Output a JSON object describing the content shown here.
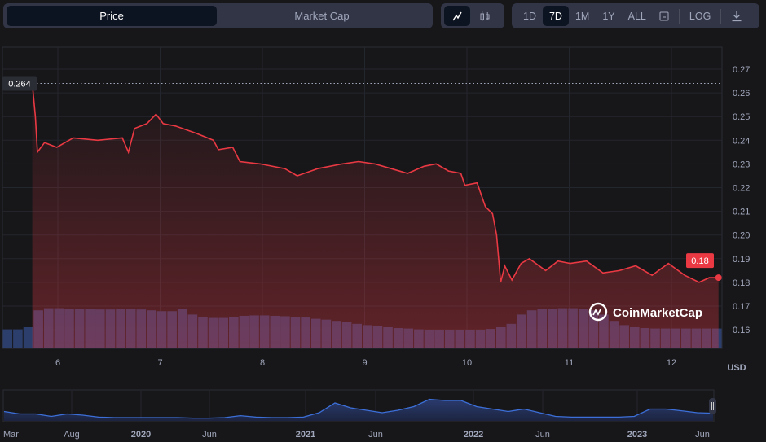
{
  "toggle": {
    "price": "Price",
    "market_cap": "Market Cap"
  },
  "chart_type": {
    "line": "line-chart-icon",
    "candle": "candlestick-icon"
  },
  "timeframes": [
    "1D",
    "7D",
    "1M",
    "1Y",
    "ALL"
  ],
  "active_timeframe": "7D",
  "log_label": "LOG",
  "currency": "USD",
  "watermark": "CoinMarketCap",
  "colors": {
    "line": "#ea3943",
    "volume": "#2c3e6b",
    "nav": "#3c6fd8"
  },
  "chart_data": {
    "type": "line",
    "title": "",
    "xlabel": "",
    "ylabel": "USD",
    "x_ticks": [
      6,
      7,
      8,
      9,
      10,
      11,
      12
    ],
    "y_ticks": [
      0.27,
      0.26,
      0.25,
      0.24,
      0.23,
      0.22,
      0.21,
      0.2,
      0.19,
      0.18,
      0.17,
      0.16
    ],
    "y_tick_labels": [
      "0.27",
      "0.26",
      "0.25",
      "0.24",
      "0.23",
      "0.22",
      "0.21",
      "0.20",
      "0.19",
      "0.18",
      "0.17",
      "0.16"
    ],
    "ylim": [
      0.151,
      0.279
    ],
    "xlim": [
      5.5,
      12.5
    ],
    "open_label": "0.264",
    "open_value": 0.264,
    "last_label": "0.18",
    "last_value": 0.182,
    "series": [
      {
        "name": "Price",
        "x": [
          5.75,
          5.78,
          5.8,
          5.87,
          5.99,
          6.15,
          6.39,
          6.63,
          6.69,
          6.75,
          6.87,
          6.96,
          7.03,
          7.15,
          7.35,
          7.52,
          7.57,
          7.71,
          7.78,
          7.98,
          8.22,
          8.34,
          8.54,
          8.78,
          8.94,
          9.1,
          9.26,
          9.42,
          9.58,
          9.7,
          9.82,
          9.94,
          9.98,
          10.1,
          10.18,
          10.25,
          10.29,
          10.33,
          10.37,
          10.44,
          10.53,
          10.61,
          10.77,
          10.89,
          11.01,
          11.17,
          11.33,
          11.49,
          11.65,
          11.81,
          11.97,
          12.13,
          12.27,
          12.37,
          12.46
        ],
        "y": [
          0.264,
          0.25,
          0.235,
          0.239,
          0.237,
          0.241,
          0.24,
          0.241,
          0.235,
          0.245,
          0.247,
          0.251,
          0.247,
          0.246,
          0.243,
          0.24,
          0.236,
          0.237,
          0.231,
          0.23,
          0.228,
          0.225,
          0.228,
          0.23,
          0.231,
          0.23,
          0.228,
          0.226,
          0.229,
          0.23,
          0.227,
          0.226,
          0.221,
          0.222,
          0.212,
          0.209,
          0.2,
          0.18,
          0.187,
          0.181,
          0.188,
          0.19,
          0.185,
          0.189,
          0.188,
          0.189,
          0.184,
          0.185,
          0.187,
          0.183,
          0.188,
          0.183,
          0.18,
          0.182,
          0.182
        ]
      }
    ],
    "volume": [
      0.45,
      0.45,
      0.5,
      0.9,
      0.95,
      0.95,
      0.94,
      0.93,
      0.93,
      0.92,
      0.92,
      0.93,
      0.94,
      0.92,
      0.9,
      0.88,
      0.88,
      0.94,
      0.8,
      0.75,
      0.72,
      0.72,
      0.75,
      0.77,
      0.78,
      0.78,
      0.77,
      0.76,
      0.75,
      0.73,
      0.7,
      0.68,
      0.65,
      0.62,
      0.58,
      0.55,
      0.52,
      0.5,
      0.48,
      0.47,
      0.45,
      0.44,
      0.43,
      0.43,
      0.43,
      0.43,
      0.44,
      0.46,
      0.5,
      0.58,
      0.8,
      0.9,
      0.93,
      0.94,
      0.95,
      0.95,
      0.94,
      0.9,
      0.8,
      0.65,
      0.55,
      0.5,
      0.48,
      0.47,
      0.47,
      0.47,
      0.47,
      0.47,
      0.47,
      0.47
    ],
    "navigator": {
      "labels": [
        "Mar",
        "Aug",
        "2020",
        "Jun",
        "2021",
        "Jun",
        "2022",
        "Jun",
        "2023",
        "Jun"
      ],
      "values": [
        0.35,
        0.25,
        0.25,
        0.15,
        0.25,
        0.2,
        0.12,
        0.1,
        0.1,
        0.1,
        0.1,
        0.1,
        0.08,
        0.08,
        0.1,
        0.18,
        0.12,
        0.1,
        0.1,
        0.12,
        0.3,
        0.7,
        0.5,
        0.4,
        0.3,
        0.4,
        0.55,
        0.85,
        0.8,
        0.8,
        0.55,
        0.45,
        0.35,
        0.45,
        0.3,
        0.15,
        0.12,
        0.12,
        0.12,
        0.12,
        0.15,
        0.45,
        0.45,
        0.38,
        0.3,
        0.28
      ]
    }
  }
}
